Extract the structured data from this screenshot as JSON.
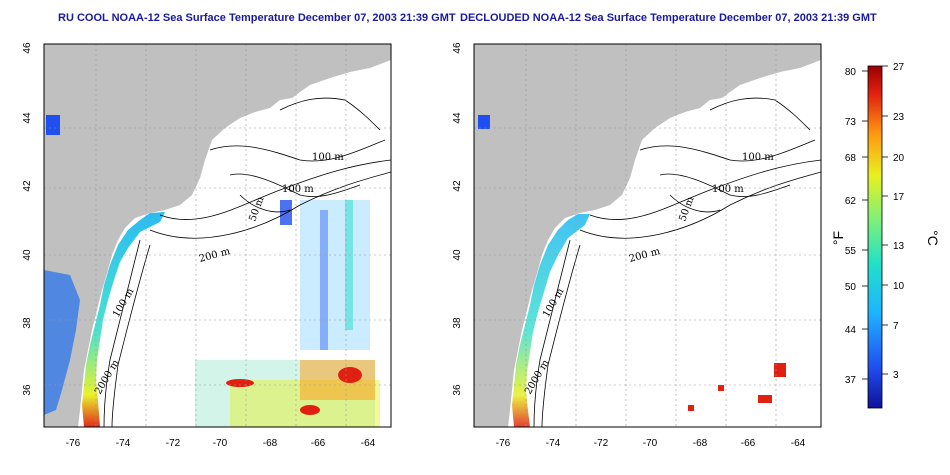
{
  "panels": [
    {
      "title": "RU COOL NOAA-12 Sea Surface Temperature December 07, 2003 21:39 GMT",
      "x_ticks": [
        "-76",
        "-74",
        "-72",
        "-70",
        "-68",
        "-66",
        "-64"
      ],
      "y_ticks": [
        "46",
        "44",
        "42",
        "40",
        "38",
        "36"
      ],
      "contour_labels": [
        "100 m",
        "100 m",
        "50 m",
        "200 m",
        "100 m",
        "2000 m"
      ]
    },
    {
      "title": "DECLOUDED NOAA-12 Sea Surface Temperature December 07, 2003 21:39 GMT",
      "x_ticks": [
        "-76",
        "-74",
        "-72",
        "-70",
        "-68",
        "-66",
        "-64"
      ],
      "y_ticks": [
        "46",
        "44",
        "42",
        "40",
        "38",
        "36"
      ],
      "contour_labels": [
        "100 m",
        "100 m",
        "50 m",
        "200 m",
        "100 m",
        "2000 m"
      ]
    }
  ],
  "colorbar": {
    "f_ticks": [
      "80",
      "73",
      "68",
      "62",
      "55",
      "50",
      "44",
      "37"
    ],
    "c_ticks": [
      "27",
      "23",
      "20",
      "17",
      "13",
      "10",
      "7",
      "3"
    ],
    "f_label": "°F",
    "c_label": "°C",
    "colors": [
      "#10109a",
      "#1f4ff0",
      "#1fb4ff",
      "#20e0c8",
      "#7ef07a",
      "#e8f020",
      "#ff9a10",
      "#e02010",
      "#9a0000"
    ]
  },
  "land_color": "#c0c0c0",
  "grid_color": "#999999"
}
